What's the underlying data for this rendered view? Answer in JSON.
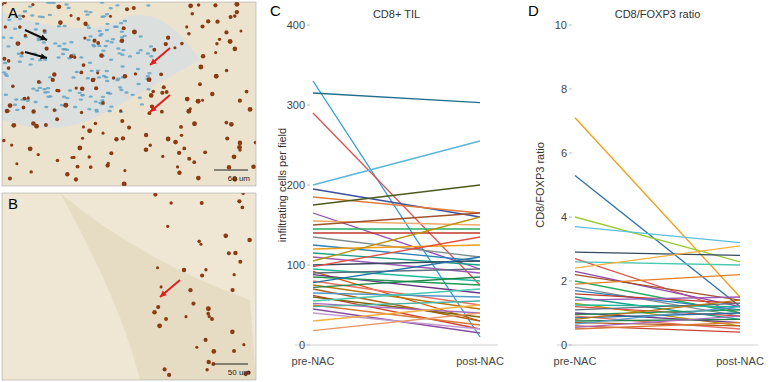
{
  "images": [
    {
      "label": "A",
      "scale_bar": "60 um"
    },
    {
      "label": "B",
      "scale_bar": "50 um"
    }
  ],
  "chart_data": [
    {
      "type": "line",
      "title": "CD8+ TIL",
      "annotations": [
        "C"
      ],
      "y_label": "infiltrating cells per field",
      "categories": [
        "pre-NAC",
        "post-NAC"
      ],
      "ylim": [
        0,
        400
      ],
      "yticks": [
        0,
        100,
        200,
        300,
        400
      ],
      "grid": false,
      "series": [
        {
          "color": "#2e9bd6",
          "values": [
            330,
            10
          ]
        },
        {
          "color": "#1f6f8b",
          "values": [
            315,
            303
          ]
        },
        {
          "color": "#d9534f",
          "values": [
            290,
            75
          ]
        },
        {
          "color": "#5bb5d6",
          "values": [
            200,
            255
          ]
        },
        {
          "color": "#3b4fa0",
          "values": [
            195,
            160
          ]
        },
        {
          "color": "#e07b39",
          "values": [
            185,
            165
          ]
        },
        {
          "color": "#4a5a1e",
          "values": [
            175,
            200
          ]
        },
        {
          "color": "#8e44ad",
          "values": [
            165,
            95
          ]
        },
        {
          "color": "#f0a868",
          "values": [
            155,
            150
          ]
        },
        {
          "color": "#a0522d",
          "values": [
            150,
            165
          ]
        },
        {
          "color": "#27ae60",
          "values": [
            145,
            145
          ]
        },
        {
          "color": "#c0392b",
          "values": [
            140,
            140
          ]
        },
        {
          "color": "#7f8c8d",
          "values": [
            135,
            110
          ]
        },
        {
          "color": "#2980b9",
          "values": [
            125,
            105
          ]
        },
        {
          "color": "#f39c12",
          "values": [
            120,
            125
          ]
        },
        {
          "color": "#16a085",
          "values": [
            115,
            100
          ]
        },
        {
          "color": "#9b59b6",
          "values": [
            110,
            90
          ]
        },
        {
          "color": "#b7950b",
          "values": [
            105,
            160
          ]
        },
        {
          "color": "#34495e",
          "values": [
            100,
            105
          ]
        },
        {
          "color": "#e74c3c",
          "values": [
            98,
            135
          ]
        },
        {
          "color": "#1abc9c",
          "values": [
            95,
            80
          ]
        },
        {
          "color": "#d35400",
          "values": [
            92,
            30
          ]
        },
        {
          "color": "#5d6d7e",
          "values": [
            90,
            95
          ]
        },
        {
          "color": "#6c3483",
          "values": [
            88,
            65
          ]
        },
        {
          "color": "#229954",
          "values": [
            85,
            75
          ]
        },
        {
          "color": "#ec7063",
          "values": [
            80,
            50
          ]
        },
        {
          "color": "#2471a3",
          "values": [
            78,
            110
          ]
        },
        {
          "color": "#b9770e",
          "values": [
            75,
            45
          ]
        },
        {
          "color": "#1e8449",
          "values": [
            72,
            85
          ]
        },
        {
          "color": "#af601a",
          "values": [
            70,
            30
          ]
        },
        {
          "color": "#5499c7",
          "values": [
            65,
            60
          ]
        },
        {
          "color": "#cb4335",
          "values": [
            62,
            20
          ]
        },
        {
          "color": "#7d6608",
          "values": [
            60,
            35
          ]
        },
        {
          "color": "#48c9b0",
          "values": [
            55,
            70
          ]
        },
        {
          "color": "#a569bd",
          "values": [
            52,
            40
          ]
        },
        {
          "color": "#dc7633",
          "values": [
            50,
            25
          ]
        },
        {
          "color": "#45b39d",
          "values": [
            48,
            55
          ]
        },
        {
          "color": "#884ea0",
          "values": [
            45,
            15
          ]
        },
        {
          "color": "#c39bd3",
          "values": [
            40,
            20
          ]
        },
        {
          "color": "#f5b041",
          "values": [
            30,
            50
          ]
        },
        {
          "color": "#e59866",
          "values": [
            18,
            40
          ]
        }
      ]
    },
    {
      "type": "line",
      "title": "CD8/FOXP3 ratio",
      "annotations": [
        "D"
      ],
      "y_label": "CD8/FOXP3 ratio",
      "categories": [
        "pre-NAC",
        "post-NAC"
      ],
      "ylim": [
        0,
        10
      ],
      "yticks": [
        0,
        2,
        4,
        6,
        8,
        10
      ],
      "grid": false,
      "series": [
        {
          "color": "#f39c12",
          "values": [
            7.1,
            1.5
          ]
        },
        {
          "color": "#2e6fa8",
          "values": [
            5.3,
            1.2
          ]
        },
        {
          "color": "#9acd32",
          "values": [
            4.0,
            2.6
          ]
        },
        {
          "color": "#5bc0de",
          "values": [
            3.7,
            3.2
          ]
        },
        {
          "color": "#34495e",
          "values": [
            2.9,
            2.8
          ]
        },
        {
          "color": "#d9534f",
          "values": [
            2.7,
            1.0
          ]
        },
        {
          "color": "#48c9b0",
          "values": [
            2.6,
            2.5
          ]
        },
        {
          "color": "#f5b041",
          "values": [
            2.4,
            3.1
          ]
        },
        {
          "color": "#8e44ad",
          "values": [
            2.3,
            1.2
          ]
        },
        {
          "color": "#a0522d",
          "values": [
            2.2,
            1.4
          ]
        },
        {
          "color": "#27ae60",
          "values": [
            2.0,
            1.0
          ]
        },
        {
          "color": "#e67e22",
          "values": [
            1.9,
            2.2
          ]
        },
        {
          "color": "#7f8c8d",
          "values": [
            1.8,
            0.9
          ]
        },
        {
          "color": "#2980b9",
          "values": [
            1.7,
            1.1
          ]
        },
        {
          "color": "#c0392b",
          "values": [
            1.6,
            1.3
          ]
        },
        {
          "color": "#16a085",
          "values": [
            1.5,
            0.8
          ]
        },
        {
          "color": "#9b59b6",
          "values": [
            1.4,
            1.5
          ]
        },
        {
          "color": "#b7950b",
          "values": [
            1.3,
            0.6
          ]
        },
        {
          "color": "#1abc9c",
          "values": [
            1.25,
            1.2
          ]
        },
        {
          "color": "#e74c3c",
          "values": [
            1.2,
            0.9
          ]
        },
        {
          "color": "#5d6d7e",
          "values": [
            1.1,
            1.3
          ]
        },
        {
          "color": "#6c3483",
          "values": [
            1.0,
            0.7
          ]
        },
        {
          "color": "#229954",
          "values": [
            0.95,
            1.1
          ]
        },
        {
          "color": "#ec7063",
          "values": [
            0.9,
            0.5
          ]
        },
        {
          "color": "#2471a3",
          "values": [
            0.85,
            1.0
          ]
        },
        {
          "color": "#b9770e",
          "values": [
            0.8,
            1.4
          ]
        },
        {
          "color": "#1e8449",
          "values": [
            0.75,
            0.8
          ]
        },
        {
          "color": "#af601a",
          "values": [
            0.7,
            0.6
          ]
        },
        {
          "color": "#5499c7",
          "values": [
            0.65,
            1.2
          ]
        },
        {
          "color": "#cb4335",
          "values": [
            0.6,
            0.4
          ]
        },
        {
          "color": "#a569bd",
          "values": [
            0.55,
            0.9
          ]
        },
        {
          "color": "#dc7633",
          "values": [
            0.5,
            0.7
          ]
        }
      ]
    }
  ]
}
